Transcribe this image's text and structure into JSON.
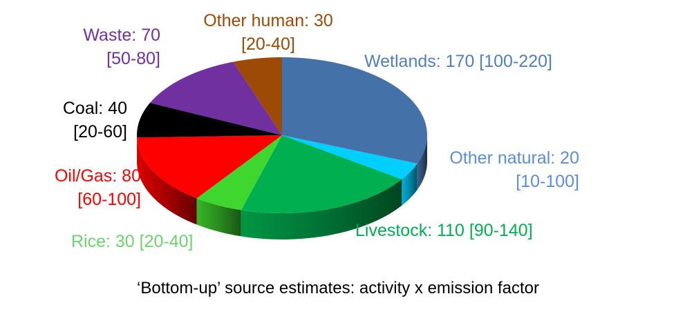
{
  "chart_data": {
    "type": "pie",
    "style": "3d",
    "caption": "‘Bottom-up’ source estimates: activity x emission factor",
    "slices": [
      {
        "id": "wetlands",
        "value": 170,
        "color": "#4472a8",
        "line1": "Wetlands: 170 [100-220]",
        "line2": ""
      },
      {
        "id": "other-natural",
        "value": 20,
        "color": "#00cfff",
        "line1": "Other natural: 20",
        "line2": "[10-100]",
        "label_color": "#5b8fd3"
      },
      {
        "id": "livestock",
        "value": 110,
        "color": "#00b050",
        "line1": "Livestock: 110 [90-140]",
        "line2": ""
      },
      {
        "id": "rice",
        "value": 30,
        "color": "#3fd62f",
        "line1": "Rice: 30 [20-40]",
        "line2": "",
        "label_color": "#6dd36d"
      },
      {
        "id": "oil-gas",
        "value": 80,
        "color": "#ff0000",
        "line1": "Oil/Gas: 80",
        "line2": "[60-100]"
      },
      {
        "id": "coal",
        "value": 40,
        "color": "#000000",
        "line1": "Coal: 40",
        "line2": "[20-60]"
      },
      {
        "id": "waste",
        "value": 70,
        "color": "#7030a0",
        "line1": "Waste: 70",
        "line2": "[50-80]"
      },
      {
        "id": "other-human",
        "value": 30,
        "color": "#9c4a06",
        "line1": "Other human: 30",
        "line2": "[20-40]"
      }
    ]
  }
}
